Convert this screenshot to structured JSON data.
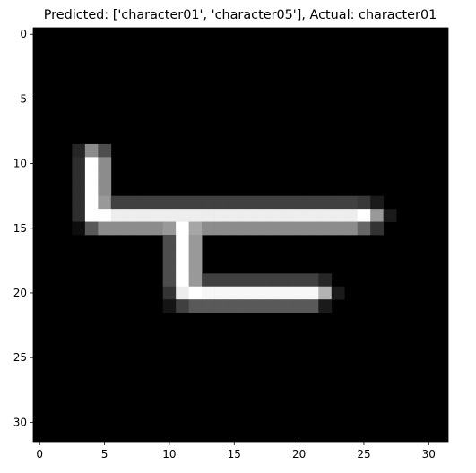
{
  "chart_data": {
    "type": "heatmap",
    "title": "Predicted: ['character01', 'character05'], Actual: character01",
    "xlabel": "",
    "ylabel": "",
    "grid": false,
    "colormap": "gray",
    "value_range": [
      0,
      1
    ],
    "xlim": [
      -0.5,
      31.5
    ],
    "ylim": [
      31.5,
      -0.5
    ],
    "x_ticks": [
      0,
      5,
      10,
      15,
      20,
      25,
      30
    ],
    "y_ticks": [
      0,
      5,
      10,
      15,
      20,
      25,
      30
    ],
    "rows": 32,
    "cols": 32,
    "pixels": [
      [
        9,
        3,
        0.15
      ],
      [
        9,
        4,
        0.55
      ],
      [
        9,
        5,
        0.3
      ],
      [
        10,
        3,
        0.18
      ],
      [
        10,
        4,
        1.0
      ],
      [
        10,
        5,
        0.55
      ],
      [
        11,
        3,
        0.18
      ],
      [
        11,
        4,
        1.0
      ],
      [
        11,
        5,
        0.55
      ],
      [
        12,
        3,
        0.18
      ],
      [
        12,
        4,
        1.0
      ],
      [
        12,
        5,
        0.55
      ],
      [
        13,
        3,
        0.18
      ],
      [
        13,
        4,
        1.0
      ],
      [
        13,
        5,
        0.6
      ],
      [
        13,
        6,
        0.25
      ],
      [
        13,
        7,
        0.25
      ],
      [
        13,
        8,
        0.25
      ],
      [
        13,
        9,
        0.25
      ],
      [
        13,
        10,
        0.25
      ],
      [
        13,
        11,
        0.25
      ],
      [
        13,
        12,
        0.25
      ],
      [
        13,
        13,
        0.25
      ],
      [
        13,
        14,
        0.25
      ],
      [
        13,
        15,
        0.25
      ],
      [
        13,
        16,
        0.25
      ],
      [
        13,
        17,
        0.25
      ],
      [
        13,
        18,
        0.25
      ],
      [
        13,
        19,
        0.25
      ],
      [
        13,
        20,
        0.25
      ],
      [
        13,
        21,
        0.25
      ],
      [
        13,
        22,
        0.25
      ],
      [
        13,
        23,
        0.25
      ],
      [
        13,
        24,
        0.25
      ],
      [
        13,
        25,
        0.22
      ],
      [
        13,
        26,
        0.1
      ],
      [
        14,
        3,
        0.18
      ],
      [
        14,
        4,
        1.0
      ],
      [
        14,
        5,
        1.0
      ],
      [
        14,
        6,
        0.93
      ],
      [
        14,
        7,
        0.93
      ],
      [
        14,
        8,
        0.93
      ],
      [
        14,
        9,
        0.93
      ],
      [
        14,
        10,
        0.93
      ],
      [
        14,
        11,
        0.93
      ],
      [
        14,
        12,
        0.93
      ],
      [
        14,
        13,
        0.93
      ],
      [
        14,
        14,
        0.93
      ],
      [
        14,
        15,
        0.93
      ],
      [
        14,
        16,
        0.93
      ],
      [
        14,
        17,
        0.93
      ],
      [
        14,
        18,
        0.93
      ],
      [
        14,
        19,
        0.93
      ],
      [
        14,
        20,
        0.93
      ],
      [
        14,
        21,
        0.93
      ],
      [
        14,
        22,
        0.93
      ],
      [
        14,
        23,
        0.93
      ],
      [
        14,
        24,
        0.93
      ],
      [
        14,
        25,
        1.0
      ],
      [
        14,
        26,
        0.6
      ],
      [
        14,
        27,
        0.1
      ],
      [
        15,
        3,
        0.05
      ],
      [
        15,
        4,
        0.35
      ],
      [
        15,
        5,
        0.55
      ],
      [
        15,
        6,
        0.55
      ],
      [
        15,
        7,
        0.55
      ],
      [
        15,
        8,
        0.55
      ],
      [
        15,
        9,
        0.55
      ],
      [
        15,
        10,
        0.6
      ],
      [
        15,
        11,
        1.0
      ],
      [
        15,
        12,
        0.65
      ],
      [
        15,
        13,
        0.55
      ],
      [
        15,
        14,
        0.55
      ],
      [
        15,
        15,
        0.55
      ],
      [
        15,
        16,
        0.55
      ],
      [
        15,
        17,
        0.55
      ],
      [
        15,
        18,
        0.55
      ],
      [
        15,
        19,
        0.55
      ],
      [
        15,
        20,
        0.55
      ],
      [
        15,
        21,
        0.55
      ],
      [
        15,
        22,
        0.55
      ],
      [
        15,
        23,
        0.55
      ],
      [
        15,
        24,
        0.55
      ],
      [
        15,
        25,
        0.4
      ],
      [
        15,
        26,
        0.2
      ],
      [
        16,
        10,
        0.3
      ],
      [
        16,
        11,
        1.0
      ],
      [
        16,
        12,
        0.6
      ],
      [
        17,
        10,
        0.3
      ],
      [
        17,
        11,
        1.0
      ],
      [
        17,
        12,
        0.6
      ],
      [
        18,
        10,
        0.3
      ],
      [
        18,
        11,
        1.0
      ],
      [
        18,
        12,
        0.6
      ],
      [
        19,
        10,
        0.3
      ],
      [
        19,
        11,
        1.0
      ],
      [
        19,
        12,
        0.6
      ],
      [
        19,
        13,
        0.25
      ],
      [
        19,
        14,
        0.25
      ],
      [
        19,
        15,
        0.25
      ],
      [
        19,
        16,
        0.25
      ],
      [
        19,
        17,
        0.25
      ],
      [
        19,
        18,
        0.25
      ],
      [
        19,
        19,
        0.25
      ],
      [
        19,
        20,
        0.25
      ],
      [
        19,
        21,
        0.25
      ],
      [
        19,
        22,
        0.15
      ],
      [
        20,
        10,
        0.2
      ],
      [
        20,
        11,
        0.93
      ],
      [
        20,
        12,
        1.0
      ],
      [
        20,
        13,
        0.97
      ],
      [
        20,
        14,
        0.97
      ],
      [
        20,
        15,
        0.97
      ],
      [
        20,
        16,
        0.97
      ],
      [
        20,
        17,
        0.97
      ],
      [
        20,
        18,
        0.97
      ],
      [
        20,
        19,
        0.97
      ],
      [
        20,
        20,
        0.97
      ],
      [
        20,
        21,
        0.97
      ],
      [
        20,
        22,
        0.7
      ],
      [
        20,
        23,
        0.1
      ],
      [
        21,
        10,
        0.08
      ],
      [
        21,
        11,
        0.25
      ],
      [
        21,
        12,
        0.35
      ],
      [
        21,
        13,
        0.35
      ],
      [
        21,
        14,
        0.35
      ],
      [
        21,
        15,
        0.35
      ],
      [
        21,
        16,
        0.35
      ],
      [
        21,
        17,
        0.35
      ],
      [
        21,
        18,
        0.35
      ],
      [
        21,
        19,
        0.35
      ],
      [
        21,
        20,
        0.35
      ],
      [
        21,
        21,
        0.35
      ],
      [
        21,
        22,
        0.1
      ]
    ]
  }
}
